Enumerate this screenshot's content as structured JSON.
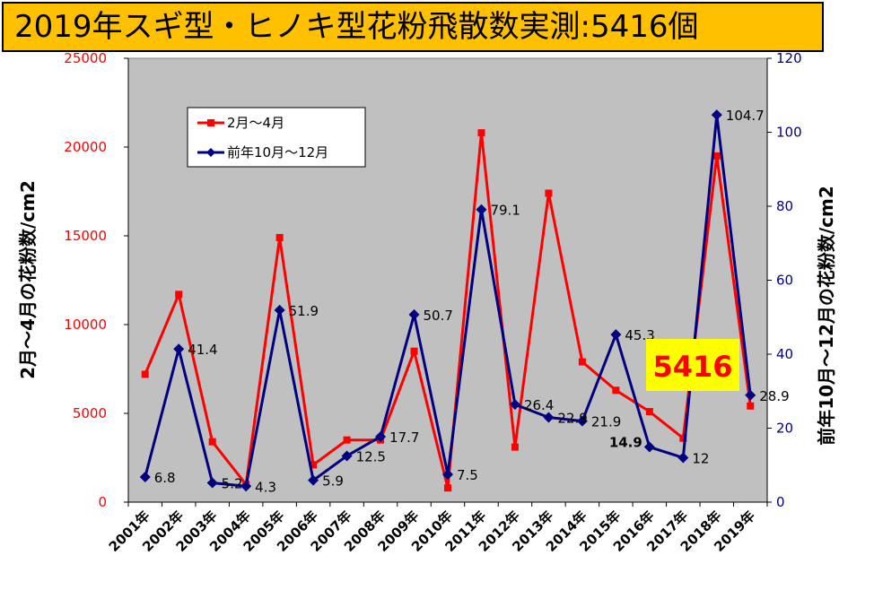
{
  "title": "2019年スギ型・ヒノキ型花粉飛散数実測:5416個",
  "chart_data": {
    "type": "line",
    "x": [
      "2001年",
      "2002年",
      "2003年",
      "2004年",
      "2005年",
      "2006年",
      "2007年",
      "2008年",
      "2009年",
      "2010年",
      "2011年",
      "2012年",
      "2013年",
      "2014年",
      "2015年",
      "2016年",
      "2017年",
      "2018年",
      "2019年"
    ],
    "series": [
      {
        "name": "2月～4月",
        "axis": "left",
        "color": "#ff0000",
        "values": [
          7200,
          11700,
          3400,
          1000,
          14900,
          2100,
          3500,
          3500,
          8500,
          800,
          20800,
          3100,
          17400,
          7900,
          6300,
          5100,
          3600,
          19500,
          5416
        ]
      },
      {
        "name": "前年10月～12月",
        "axis": "right",
        "color": "#000080",
        "values": [
          6.8,
          41.4,
          5.2,
          4.3,
          51.9,
          5.9,
          12.5,
          17.7,
          50.7,
          7.5,
          79.1,
          26.4,
          22.9,
          21.9,
          45.3,
          14.9,
          12,
          104.7,
          28.9
        ],
        "labels": [
          "6.8",
          "41.4",
          "5.2",
          "4.3",
          "51.9",
          "5.9",
          "12.5",
          "17.7",
          "50.7",
          "7.5",
          "79.1",
          "26.4",
          "22.9",
          "21.9",
          "45.3",
          "14.9",
          "12",
          "104.7",
          "28.9"
        ]
      }
    ],
    "y_left": {
      "label": "2月～4月の花粉数/cm2",
      "range": [
        0,
        25000
      ],
      "ticks": [
        0,
        5000,
        10000,
        15000,
        20000,
        25000
      ],
      "color": "#ff0000"
    },
    "y_right": {
      "label": "前年10月～12月の花粉数/cm2",
      "range": [
        0,
        120
      ],
      "ticks": [
        0,
        20,
        40,
        60,
        80,
        100,
        120
      ],
      "color": "#000080"
    },
    "annotation": {
      "text": "5416",
      "color": "#ff0000",
      "background": "#ffff00"
    },
    "legend": "top-left",
    "plot_background": "#c0c0c0",
    "grid": false
  }
}
